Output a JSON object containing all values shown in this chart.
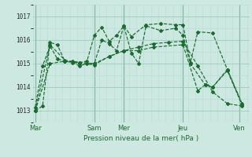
{
  "background_color": "#cce8e0",
  "grid_color_major": "#99ccbb",
  "grid_color_minor": "#b8ddd5",
  "line_color": "#1a6b30",
  "xlabel": "Pression niveau de la mer( hPa )",
  "ylim": [
    1012.5,
    1017.5
  ],
  "yticks": [
    1013,
    1014,
    1015,
    1016,
    1017
  ],
  "xlim": [
    0,
    176
  ],
  "xtick_labels": [
    "Mar",
    "Sam",
    "Mer",
    "Jeu",
    "Ven"
  ],
  "xtick_positions": [
    2,
    50,
    74,
    122,
    168
  ],
  "vlines_heavy": [
    2,
    50,
    74,
    122,
    168
  ],
  "series": [
    {
      "x": [
        2,
        14,
        26,
        38,
        50,
        62,
        74,
        86,
        98,
        110,
        122,
        134,
        146,
        158,
        170
      ],
      "y": [
        1013.0,
        1015.0,
        1015.1,
        1015.05,
        1015.0,
        1015.3,
        1015.55,
        1015.7,
        1015.85,
        1015.9,
        1015.95,
        1014.9,
        1013.8,
        1013.3,
        1013.2
      ]
    },
    {
      "x": [
        2,
        8,
        14,
        20,
        26,
        32,
        38,
        44,
        50,
        56,
        62,
        68,
        74,
        80,
        92,
        104,
        116,
        122,
        128,
        134,
        146,
        158,
        170
      ],
      "y": [
        1013.0,
        1013.2,
        1015.9,
        1015.8,
        1015.1,
        1015.1,
        1015.05,
        1015.1,
        1016.2,
        1016.55,
        1015.95,
        1016.2,
        1016.6,
        1016.15,
        1016.65,
        1016.7,
        1016.65,
        1016.65,
        1015.05,
        1016.35,
        1016.3,
        1014.75,
        1013.3
      ]
    },
    {
      "x": [
        2,
        8,
        14,
        20,
        26,
        32,
        38,
        44,
        50,
        56,
        62,
        68,
        74,
        80,
        86,
        92,
        104,
        116,
        122,
        128,
        140,
        146,
        158,
        170
      ],
      "y": [
        1013.15,
        1014.9,
        1015.75,
        1015.2,
        1015.1,
        1015.05,
        1014.9,
        1015.0,
        1015.0,
        1016.0,
        1015.85,
        1015.55,
        1016.6,
        1015.45,
        1015.0,
        1016.6,
        1016.4,
        1016.5,
        1016.2,
        1015.0,
        1014.1,
        1014.0,
        1014.75,
        1013.25
      ]
    },
    {
      "x": [
        2,
        14,
        26,
        38,
        50,
        62,
        74,
        86,
        98,
        122,
        134,
        140,
        146,
        158,
        170
      ],
      "y": [
        1013.0,
        1015.8,
        1015.15,
        1015.0,
        1014.95,
        1015.3,
        1015.55,
        1015.55,
        1015.7,
        1015.8,
        1013.85,
        1014.1,
        1014.0,
        1014.7,
        1013.25
      ]
    }
  ]
}
